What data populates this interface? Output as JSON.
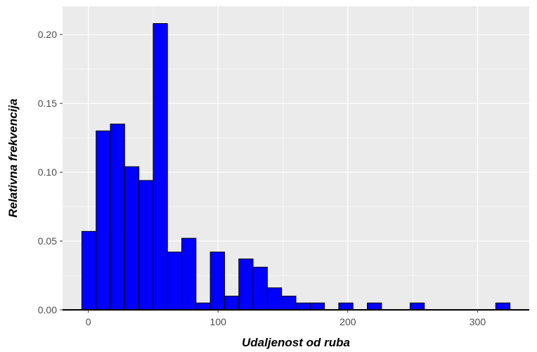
{
  "chart_data": {
    "type": "bar",
    "subtype": "histogram",
    "xlabel": "Udaljenost od ruba",
    "ylabel": "Relativna frekvencija",
    "xlim": [
      -5,
      325
    ],
    "ylim": [
      0,
      0.21
    ],
    "x_ticks": [
      0,
      100,
      200,
      300
    ],
    "y_ticks": [
      0.0,
      0.05,
      0.1,
      0.15,
      0.2
    ],
    "x_tick_labels": [
      "0",
      "100",
      "200",
      "300"
    ],
    "y_tick_labels": [
      "0.00",
      "0.05",
      "0.10",
      "0.15",
      "0.20"
    ],
    "bin_width": 11,
    "bins": [
      {
        "start": -5,
        "end": 6,
        "value": 0.057
      },
      {
        "start": 6,
        "end": 17,
        "value": 0.13
      },
      {
        "start": 17,
        "end": 28,
        "value": 0.135
      },
      {
        "start": 28,
        "end": 39,
        "value": 0.104
      },
      {
        "start": 39,
        "end": 50,
        "value": 0.094
      },
      {
        "start": 50,
        "end": 61,
        "value": 0.208
      },
      {
        "start": 61,
        "end": 72,
        "value": 0.042
      },
      {
        "start": 72,
        "end": 83,
        "value": 0.052
      },
      {
        "start": 83,
        "end": 94,
        "value": 0.005
      },
      {
        "start": 94,
        "end": 105,
        "value": 0.042
      },
      {
        "start": 105,
        "end": 116,
        "value": 0.01
      },
      {
        "start": 116,
        "end": 127,
        "value": 0.037
      },
      {
        "start": 127,
        "end": 138,
        "value": 0.031
      },
      {
        "start": 138,
        "end": 149,
        "value": 0.016
      },
      {
        "start": 149,
        "end": 160,
        "value": 0.01
      },
      {
        "start": 160,
        "end": 171,
        "value": 0.005
      },
      {
        "start": 171,
        "end": 182,
        "value": 0.005
      },
      {
        "start": 193,
        "end": 204,
        "value": 0.005
      },
      {
        "start": 215,
        "end": 226,
        "value": 0.005
      },
      {
        "start": 248,
        "end": 259,
        "value": 0.005
      },
      {
        "start": 314,
        "end": 325,
        "value": 0.005
      }
    ],
    "grid": true,
    "colors": {
      "bar_fill": "#0000ff",
      "bar_stroke": "#000000",
      "panel_background": "#ebebeb",
      "grid_line": "#ffffff",
      "axis_line": "#000000"
    }
  }
}
